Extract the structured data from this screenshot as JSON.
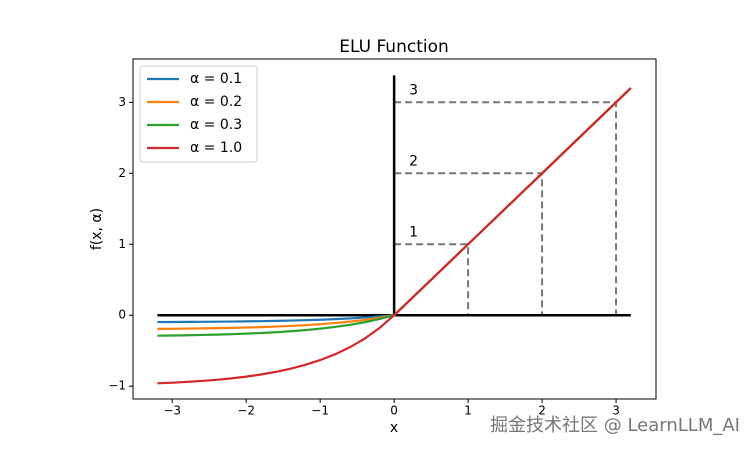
{
  "chart_data": {
    "type": "line",
    "title": "ELU Function",
    "xlabel": "x",
    "ylabel": "f(x, α)",
    "x": [
      -3.2,
      -3.0,
      -2.8,
      -2.6,
      -2.4,
      -2.2,
      -2.0,
      -1.8,
      -1.6,
      -1.4,
      -1.2,
      -1.0,
      -0.8,
      -0.6,
      -0.4,
      -0.2,
      0,
      1,
      2,
      3,
      3.2
    ],
    "series": [
      {
        "name": "α = 0.1",
        "color": "#1f77b4",
        "values": [
          -0.0959,
          -0.095,
          -0.0939,
          -0.0926,
          -0.0909,
          -0.0889,
          -0.0865,
          -0.0835,
          -0.0798,
          -0.0753,
          -0.0699,
          -0.0632,
          -0.0551,
          -0.0451,
          -0.033,
          -0.0181,
          0,
          1,
          2,
          3,
          3.2
        ]
      },
      {
        "name": "α = 0.2",
        "color": "#ff7f0e",
        "values": [
          -0.1918,
          -0.19,
          -0.1878,
          -0.1851,
          -0.1819,
          -0.1778,
          -0.1729,
          -0.1669,
          -0.1596,
          -0.1507,
          -0.1398,
          -0.1264,
          -0.1101,
          -0.0902,
          -0.0659,
          -0.0363,
          0,
          1,
          2,
          3,
          3.2
        ]
      },
      {
        "name": "α = 0.3",
        "color": "#2ca02c",
        "values": [
          -0.2878,
          -0.2851,
          -0.2818,
          -0.2777,
          -0.2728,
          -0.2668,
          -0.2594,
          -0.2504,
          -0.2394,
          -0.226,
          -0.2096,
          -0.1896,
          -0.1652,
          -0.1354,
          -0.0989,
          -0.0544,
          0,
          1,
          2,
          3,
          3.2
        ]
      },
      {
        "name": "α = 1.0",
        "color": "#d62728",
        "values": [
          -0.9592,
          -0.9502,
          -0.9392,
          -0.9257,
          -0.9093,
          -0.8892,
          -0.8647,
          -0.8347,
          -0.7981,
          -0.7534,
          -0.6988,
          -0.6321,
          -0.5507,
          -0.4512,
          -0.3297,
          -0.1813,
          0,
          1,
          2,
          3,
          3.2
        ]
      }
    ],
    "hline": {
      "y": 0,
      "x": [
        -3.2,
        3.2
      ]
    },
    "vline": {
      "x": 0,
      "y": [
        0,
        3.38
      ]
    },
    "reference_points": [
      1,
      2,
      3
    ],
    "xlim": [
      -3.53,
      3.54
    ],
    "ylim": [
      -1.18,
      3.61
    ],
    "xticks": [
      {
        "value": -3,
        "label": "−3"
      },
      {
        "value": -2,
        "label": "−2"
      },
      {
        "value": -1,
        "label": "−1"
      },
      0,
      1,
      2,
      3
    ],
    "yticks": [
      {
        "value": -1,
        "label": "−1"
      },
      0,
      1,
      2,
      3
    ],
    "legend": "upper left",
    "watermark": "掘金技术社区 @ LearnLLM_AI"
  }
}
